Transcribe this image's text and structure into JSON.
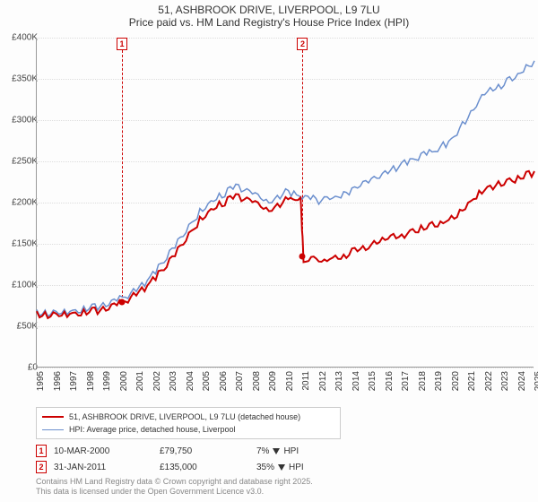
{
  "title": {
    "line1": "51, ASHBROOK DRIVE, LIVERPOOL, L9 7LU",
    "line2": "Price paid vs. HM Land Registry's House Price Index (HPI)"
  },
  "chart": {
    "type": "line",
    "background_color": "#fdfdfd",
    "grid_color": "#dddddd",
    "axis_color": "#999999",
    "text_color": "#333333",
    "label_fontsize": 10,
    "title_fontsize": 12,
    "ylim": [
      0,
      400000
    ],
    "ytick_step": 50000,
    "y_ticks": [
      "£0",
      "£50K",
      "£100K",
      "£150K",
      "£200K",
      "£250K",
      "£300K",
      "£350K",
      "£400K"
    ],
    "xlim": [
      1995,
      2025
    ],
    "x_ticks": [
      "1995",
      "1996",
      "1997",
      "1998",
      "1999",
      "2000",
      "2001",
      "2002",
      "2003",
      "2004",
      "2005",
      "2006",
      "2007",
      "2008",
      "2009",
      "2010",
      "2011",
      "2012",
      "2013",
      "2014",
      "2015",
      "2016",
      "2017",
      "2018",
      "2019",
      "2020",
      "2021",
      "2022",
      "2023",
      "2024",
      "2025"
    ],
    "series": [
      {
        "name": "property",
        "legend": "51, ASHBROOK DRIVE, LIVERPOOL, L9 7LU (detached house)",
        "color": "#cc0000",
        "line_width": 2,
        "data": [
          [
            1995,
            66000
          ],
          [
            1996,
            66500
          ],
          [
            1997,
            68000
          ],
          [
            1998,
            70000
          ],
          [
            1999,
            73000
          ],
          [
            2000,
            79750
          ],
          [
            2001,
            90000
          ],
          [
            2002,
            108000
          ],
          [
            2003,
            130000
          ],
          [
            2004,
            160000
          ],
          [
            2005,
            185000
          ],
          [
            2006,
            200000
          ],
          [
            2007,
            210000
          ],
          [
            2008,
            205000
          ],
          [
            2009,
            190000
          ],
          [
            2010,
            205000
          ],
          [
            2010.9,
            208000
          ],
          [
            2011.08,
            135000
          ],
          [
            2012,
            132000
          ],
          [
            2013,
            135000
          ],
          [
            2014,
            142000
          ],
          [
            2015,
            150000
          ],
          [
            2016,
            158000
          ],
          [
            2017,
            162000
          ],
          [
            2018,
            170000
          ],
          [
            2019,
            175000
          ],
          [
            2020,
            182000
          ],
          [
            2021,
            200000
          ],
          [
            2022,
            220000
          ],
          [
            2023,
            225000
          ],
          [
            2024,
            232000
          ],
          [
            2025,
            238000
          ]
        ]
      },
      {
        "name": "hpi",
        "legend": "HPI: Average price, detached house, Liverpool",
        "color": "#6b8fce",
        "line_width": 1.5,
        "data": [
          [
            1995,
            68000
          ],
          [
            1996,
            69000
          ],
          [
            1997,
            71000
          ],
          [
            1998,
            74000
          ],
          [
            1999,
            78000
          ],
          [
            2000,
            85000
          ],
          [
            2001,
            95000
          ],
          [
            2002,
            115000
          ],
          [
            2003,
            140000
          ],
          [
            2004,
            170000
          ],
          [
            2005,
            195000
          ],
          [
            2006,
            210000
          ],
          [
            2007,
            222000
          ],
          [
            2008,
            215000
          ],
          [
            2009,
            200000
          ],
          [
            2010,
            215000
          ],
          [
            2011,
            210000
          ],
          [
            2012,
            205000
          ],
          [
            2013,
            208000
          ],
          [
            2014,
            218000
          ],
          [
            2015,
            228000
          ],
          [
            2016,
            238000
          ],
          [
            2017,
            248000
          ],
          [
            2018,
            258000
          ],
          [
            2019,
            265000
          ],
          [
            2020,
            278000
          ],
          [
            2021,
            305000
          ],
          [
            2022,
            335000
          ],
          [
            2023,
            345000
          ],
          [
            2024,
            358000
          ],
          [
            2025,
            372000
          ]
        ]
      }
    ],
    "markers": [
      {
        "id": "1",
        "x": 2000.19,
        "date": "10-MAR-2000",
        "price": "£79,750",
        "price_val": 79750,
        "delta_pct": "7%",
        "delta_dir": "down",
        "delta_vs": "HPI"
      },
      {
        "id": "2",
        "x": 2011.08,
        "date": "31-JAN-2011",
        "price": "£135,000",
        "price_val": 135000,
        "delta_pct": "35%",
        "delta_dir": "down",
        "delta_vs": "HPI"
      }
    ]
  },
  "footer": {
    "line1": "Contains HM Land Registry data © Crown copyright and database right 2025.",
    "line2": "This data is licensed under the Open Government Licence v3.0."
  }
}
